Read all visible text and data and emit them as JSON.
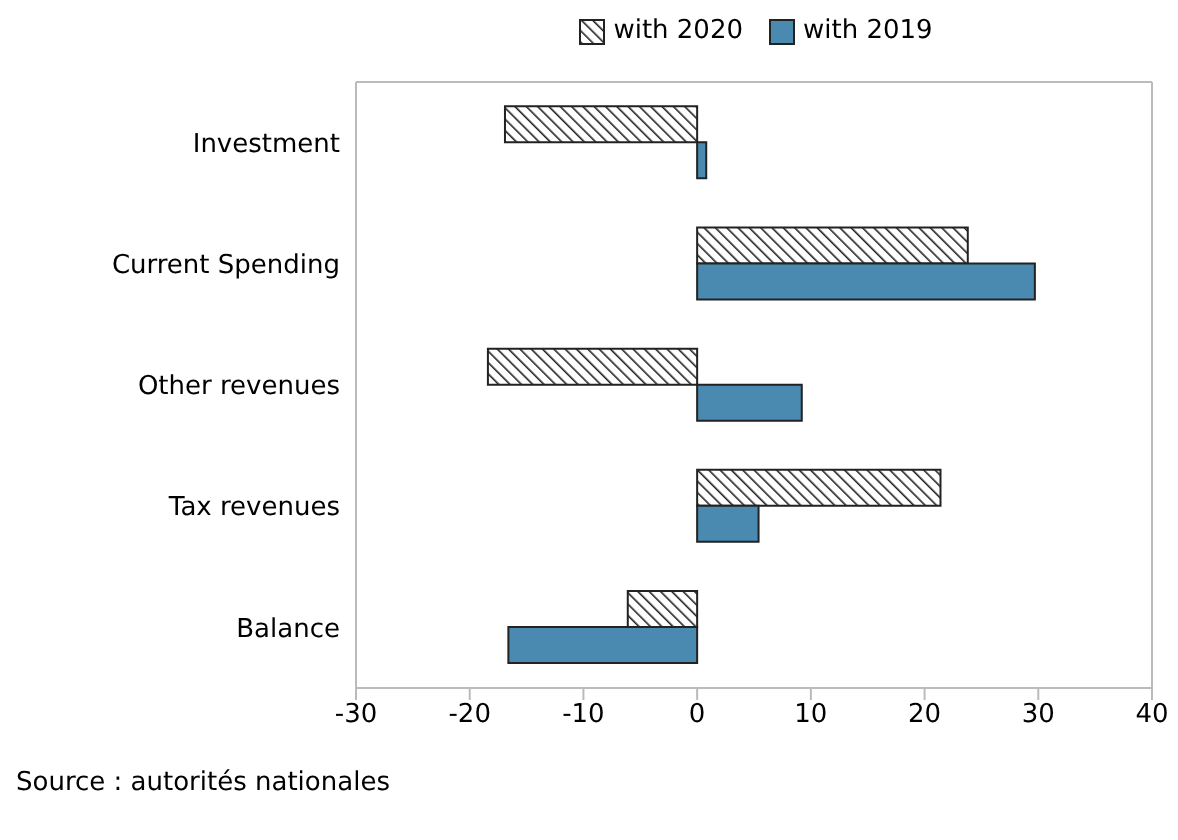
{
  "chart_data": {
    "type": "bar",
    "orientation": "horizontal",
    "categories": [
      "Investment",
      "Current Spending",
      "Other revenues",
      "Tax revenues",
      "Balance"
    ],
    "series": [
      {
        "name": "with 2020",
        "color": "#222222",
        "values": [
          -16.9,
          23.8,
          -18.4,
          21.4,
          -6.1
        ]
      },
      {
        "name": "with 2019",
        "color": "#4a8ab0",
        "values": [
          0.8,
          29.7,
          9.2,
          5.4,
          -16.6
        ]
      }
    ],
    "xlim": [
      -30,
      40
    ],
    "xticks": [
      -30,
      -20,
      -10,
      0,
      10,
      20,
      30,
      40
    ],
    "grid": false,
    "legend": "top",
    "annotations": [
      "Source : autorités nationales"
    ]
  }
}
